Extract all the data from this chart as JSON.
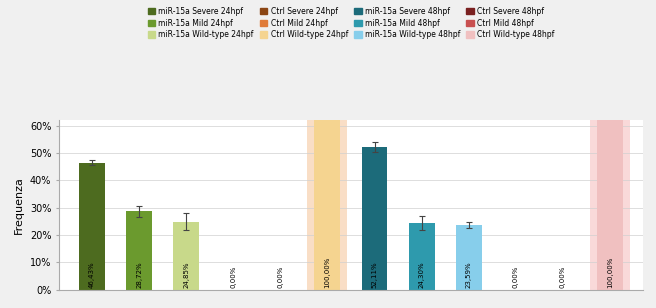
{
  "values": [
    46.43,
    28.72,
    24.85,
    0.0,
    0.0,
    100.0,
    52.11,
    24.3,
    23.59,
    0.0,
    0.0,
    100.0
  ],
  "errors": [
    1.0,
    2.0,
    3.0,
    0.0,
    0.0,
    0.0,
    1.8,
    2.5,
    1.2,
    0.0,
    0.0,
    0.0
  ],
  "bar_colors": [
    "#4d6b1f",
    "#6b9a2e",
    "#c8d98a",
    "#8b4513",
    "#e07b39",
    "#f5d490",
    "#1c6b7a",
    "#2e9aad",
    "#87ceeb",
    "#7a2020",
    "#c85050",
    "#f0c0c0"
  ],
  "bar_labels": [
    "46,43%",
    "28,72%",
    "24,85%",
    "0,00%",
    "0,00%",
    "100,00%",
    "52,11%",
    "24,30%",
    "23,59%",
    "0,00%",
    "0,00%",
    "100,00%"
  ],
  "bg_highlight_6": "#f5c9a0",
  "bg_highlight_12": "#f5c0c0",
  "legend_entries": [
    {
      "label": "miR-15a Severe 24hpf",
      "color": "#4d6b1f"
    },
    {
      "label": "miR-15a Mild 24hpf",
      "color": "#6b9a2e"
    },
    {
      "label": "miR-15a Wild-type 24hpf",
      "color": "#c8d98a"
    },
    {
      "label": "Ctrl Severe 24hpf",
      "color": "#8b4513"
    },
    {
      "label": "Ctrl Mild 24hpf",
      "color": "#e07b39"
    },
    {
      "label": "Ctrl Wild-type 24hpf",
      "color": "#f5d490"
    },
    {
      "label": "miR-15a Severe 48hpf",
      "color": "#1c6b7a"
    },
    {
      "label": "miR-15a Mild 48hpf",
      "color": "#2e9aad"
    },
    {
      "label": "miR-15a Wild-type 48hpf",
      "color": "#87ceeb"
    },
    {
      "label": "Ctrl Severe 48hpf",
      "color": "#7a2020"
    },
    {
      "label": "Ctrl Mild 48hpf",
      "color": "#c85050"
    },
    {
      "label": "Ctrl Wild-type 48hpf",
      "color": "#f0c0c0"
    }
  ],
  "ylabel": "Frequenza",
  "ylim": [
    0,
    62
  ],
  "yticks": [
    0,
    10,
    20,
    30,
    40,
    50,
    60
  ],
  "ytick_labels": [
    "0%",
    "10%",
    "20%",
    "30%",
    "40%",
    "50%",
    "60%"
  ],
  "fig_bg": "#f0f0f0",
  "ax_bg": "#ffffff",
  "grid_color": "#d0d0d0"
}
